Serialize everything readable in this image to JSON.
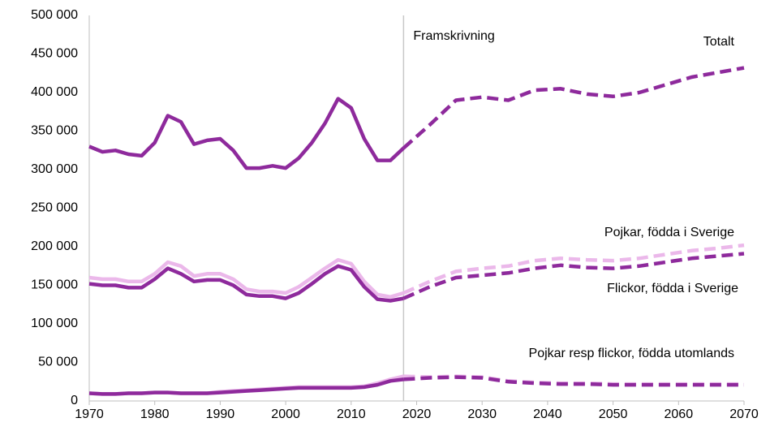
{
  "chart_data": {
    "type": "line",
    "x": [
      1970,
      1972,
      1974,
      1976,
      1978,
      1980,
      1982,
      1984,
      1986,
      1988,
      1990,
      1992,
      1994,
      1996,
      1998,
      2000,
      2002,
      2004,
      2006,
      2008,
      2010,
      2012,
      2014,
      2016,
      2018,
      2022,
      2026,
      2030,
      2034,
      2038,
      2042,
      2046,
      2050,
      2054,
      2058,
      2062,
      2066,
      2070
    ],
    "projection_start": 2018,
    "projection_label": "Framskrivning",
    "annotations": [
      "Totalt",
      "Pojkar, födda i Sverige",
      "Flickor, födda i Sverige",
      "Pojkar resp flickor, födda utomlands"
    ],
    "series": [
      {
        "color": "#8e2a9c",
        "values": [
          330000,
          323000,
          325000,
          320000,
          318000,
          335000,
          370000,
          362000,
          333000,
          338000,
          340000,
          325000,
          302000,
          302000,
          305000,
          302000,
          315000,
          335000,
          360000,
          392000,
          380000,
          340000,
          312000,
          312000,
          328000,
          358000,
          390000,
          394000,
          390000,
          403000,
          405000,
          398000,
          395000,
          400000,
          410000,
          420000,
          426000,
          432000
        ]
      },
      {
        "color": "#ebb8ea",
        "values": [
          160000,
          158000,
          158000,
          155000,
          155000,
          165000,
          180000,
          175000,
          162000,
          165000,
          165000,
          158000,
          145000,
          142000,
          142000,
          140000,
          148000,
          160000,
          172000,
          183000,
          178000,
          155000,
          138000,
          135000,
          140000,
          155000,
          168000,
          172000,
          175000,
          182000,
          185000,
          183000,
          182000,
          185000,
          190000,
          195000,
          198000,
          202000
        ]
      },
      {
        "color": "#8e2a9c",
        "values": [
          152000,
          150000,
          150000,
          147000,
          147000,
          158000,
          172000,
          165000,
          155000,
          157000,
          157000,
          150000,
          138000,
          136000,
          136000,
          133000,
          140000,
          152000,
          165000,
          175000,
          170000,
          148000,
          132000,
          130000,
          133000,
          148000,
          160000,
          163000,
          166000,
          172000,
          176000,
          173000,
          172000,
          175000,
          180000,
          185000,
          188000,
          191000
        ]
      },
      {
        "color": "#ebb8ea",
        "values": [
          10000,
          9000,
          9000,
          10000,
          10000,
          11000,
          11000,
          10000,
          10000,
          10000,
          12000,
          13000,
          14000,
          15000,
          16000,
          17000,
          18000,
          18000,
          18000,
          18000,
          18000,
          19000,
          23000,
          28000,
          32000,
          31000,
          32000,
          31000,
          26000,
          24000,
          23000,
          23000,
          22000,
          22000,
          22000,
          22000,
          22000,
          22000
        ]
      },
      {
        "color": "#8e2a9c",
        "values": [
          10000,
          9000,
          9000,
          10000,
          10000,
          11000,
          11000,
          10000,
          10000,
          10000,
          11000,
          12000,
          13000,
          14000,
          15000,
          16000,
          17000,
          17000,
          17000,
          17000,
          17000,
          18000,
          21000,
          26000,
          28000,
          30000,
          31000,
          30000,
          25000,
          23000,
          22000,
          22000,
          21000,
          21000,
          21000,
          21000,
          21000,
          21000
        ]
      }
    ],
    "xlim": [
      1970,
      2070
    ],
    "xticks": [
      1970,
      1980,
      1990,
      2000,
      2010,
      2020,
      2030,
      2040,
      2050,
      2060,
      2070
    ],
    "ylim": [
      0,
      500000
    ],
    "yticks": [
      {
        "value": 0,
        "label": "0"
      },
      {
        "value": 50000,
        "label": "50 000"
      },
      {
        "value": 100000,
        "label": "100 000"
      },
      {
        "value": 150000,
        "label": "150 000"
      },
      {
        "value": 200000,
        "label": "200 000"
      },
      {
        "value": 250000,
        "label": "250 000"
      },
      {
        "value": 300000,
        "label": "300 000"
      },
      {
        "value": 350000,
        "label": "350 000"
      },
      {
        "value": 400000,
        "label": "400 000"
      },
      {
        "value": 450000,
        "label": "450 000"
      },
      {
        "value": 500000,
        "label": "500 000"
      }
    ],
    "grid": false
  }
}
